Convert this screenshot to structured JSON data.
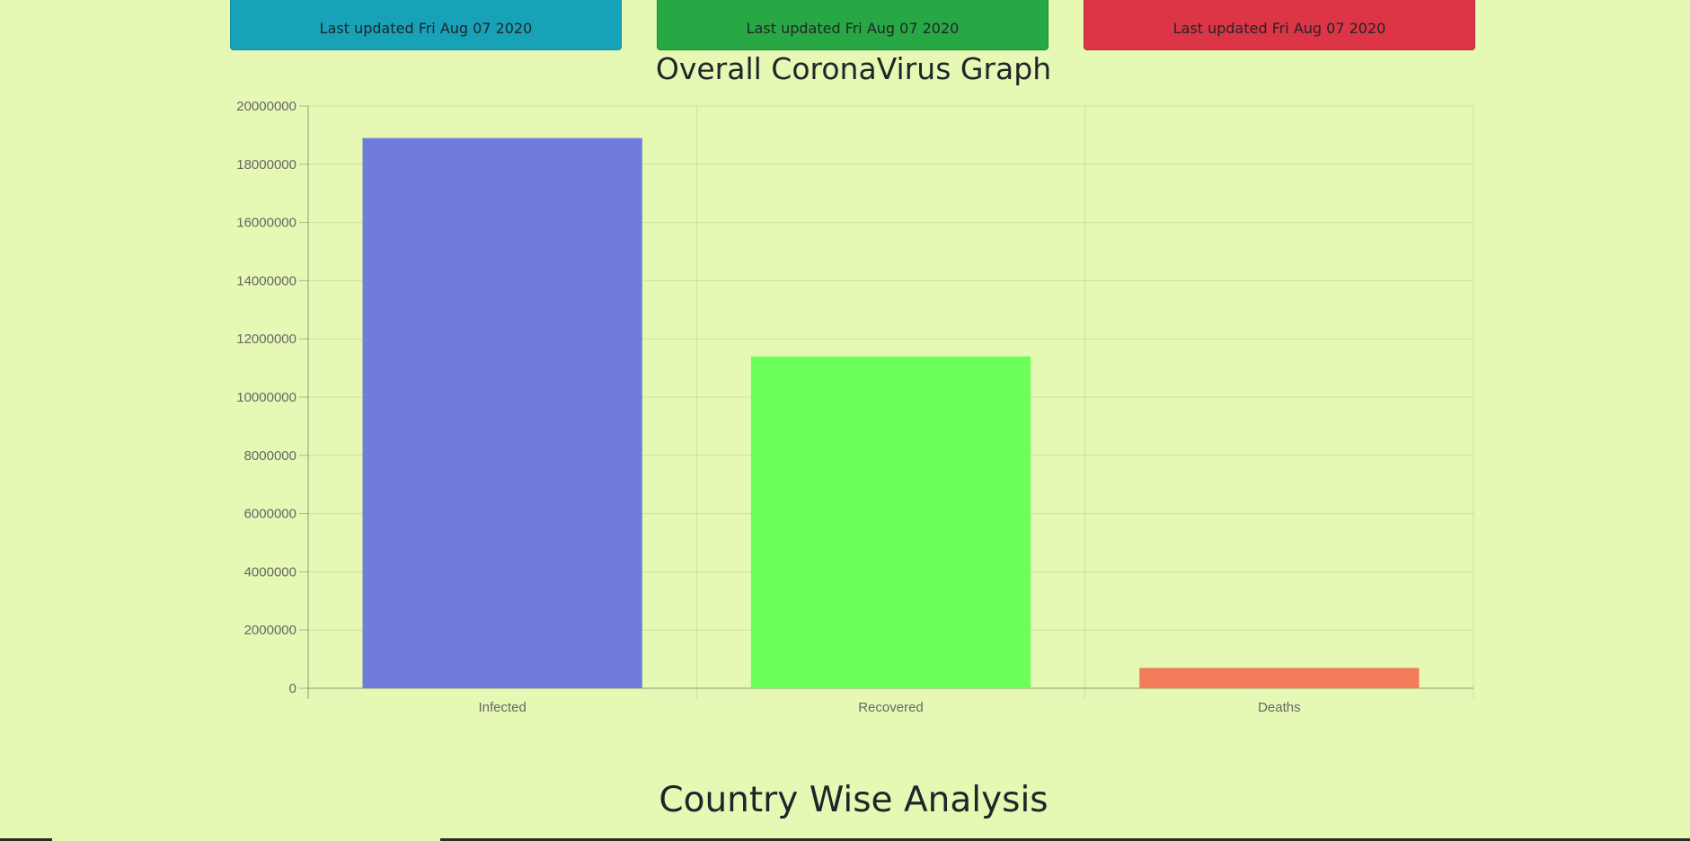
{
  "cards": [
    {
      "label": "Last updated Fri Aug 07 2020",
      "color": "#17a2b8"
    },
    {
      "label": "Last updated Fri Aug 07 2020",
      "color": "#28a745"
    },
    {
      "label": "Last updated Fri Aug 07 2020",
      "color": "#dc3545"
    }
  ],
  "graph_title": "Overall CoronaVirus Graph",
  "section_title": "Country Wise Analysis",
  "chart_data": {
    "type": "bar",
    "categories": [
      "Infected",
      "Recovered",
      "Deaths"
    ],
    "values": [
      18900000,
      11400000,
      700000
    ],
    "colors": [
      "#6f7cdc",
      "#6dff59",
      "#f27c59"
    ],
    "ylim": [
      0,
      20000000
    ],
    "yticks": [
      "0",
      "2000000",
      "4000000",
      "6000000",
      "8000000",
      "10000000",
      "12000000",
      "14000000",
      "16000000",
      "18000000",
      "20000000"
    ],
    "grid": true,
    "legend": "none"
  }
}
